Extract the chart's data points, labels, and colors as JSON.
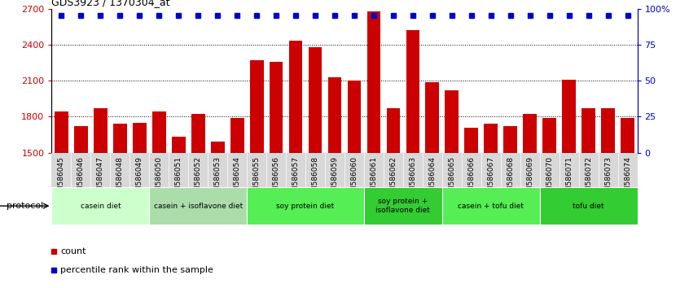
{
  "title": "GDS3923 / 1370304_at",
  "samples": [
    "GSM586045",
    "GSM586046",
    "GSM586047",
    "GSM586048",
    "GSM586049",
    "GSM586050",
    "GSM586051",
    "GSM586052",
    "GSM586053",
    "GSM586054",
    "GSM586055",
    "GSM586056",
    "GSM586057",
    "GSM586058",
    "GSM586059",
    "GSM586060",
    "GSM586061",
    "GSM586062",
    "GSM586063",
    "GSM586064",
    "GSM586065",
    "GSM586066",
    "GSM586067",
    "GSM586068",
    "GSM586069",
    "GSM586070",
    "GSM586071",
    "GSM586072",
    "GSM586073",
    "GSM586074"
  ],
  "counts": [
    1840,
    1720,
    1870,
    1740,
    1750,
    1840,
    1630,
    1820,
    1590,
    1790,
    2270,
    2260,
    2430,
    2380,
    2130,
    2100,
    2680,
    1870,
    2520,
    2090,
    2020,
    1710,
    1740,
    1720,
    1820,
    1790,
    2110,
    1870,
    1870,
    1790
  ],
  "ylim_left": [
    1500,
    2700
  ],
  "ylim_right": [
    0,
    100
  ],
  "yticks_left": [
    1500,
    1800,
    2100,
    2400,
    2700
  ],
  "yticks_right": [
    0,
    25,
    50,
    75,
    100
  ],
  "bar_color": "#cc0000",
  "dot_color": "#0000cc",
  "bg_color": "#ffffff",
  "tick_bg_color": "#dddddd",
  "protocols": [
    {
      "label": "casein diet",
      "start": 0,
      "end": 5,
      "color": "#ccffcc"
    },
    {
      "label": "casein + isoflavone diet",
      "start": 5,
      "end": 10,
      "color": "#aaddaa"
    },
    {
      "label": "soy protein diet",
      "start": 10,
      "end": 16,
      "color": "#55ee55"
    },
    {
      "label": "soy protein +\nisoflavone diet",
      "start": 16,
      "end": 20,
      "color": "#33cc33"
    },
    {
      "label": "casein + tofu diet",
      "start": 20,
      "end": 25,
      "color": "#55ee55"
    },
    {
      "label": "tofu diet",
      "start": 25,
      "end": 30,
      "color": "#33cc33"
    }
  ],
  "bar_width": 0.7
}
